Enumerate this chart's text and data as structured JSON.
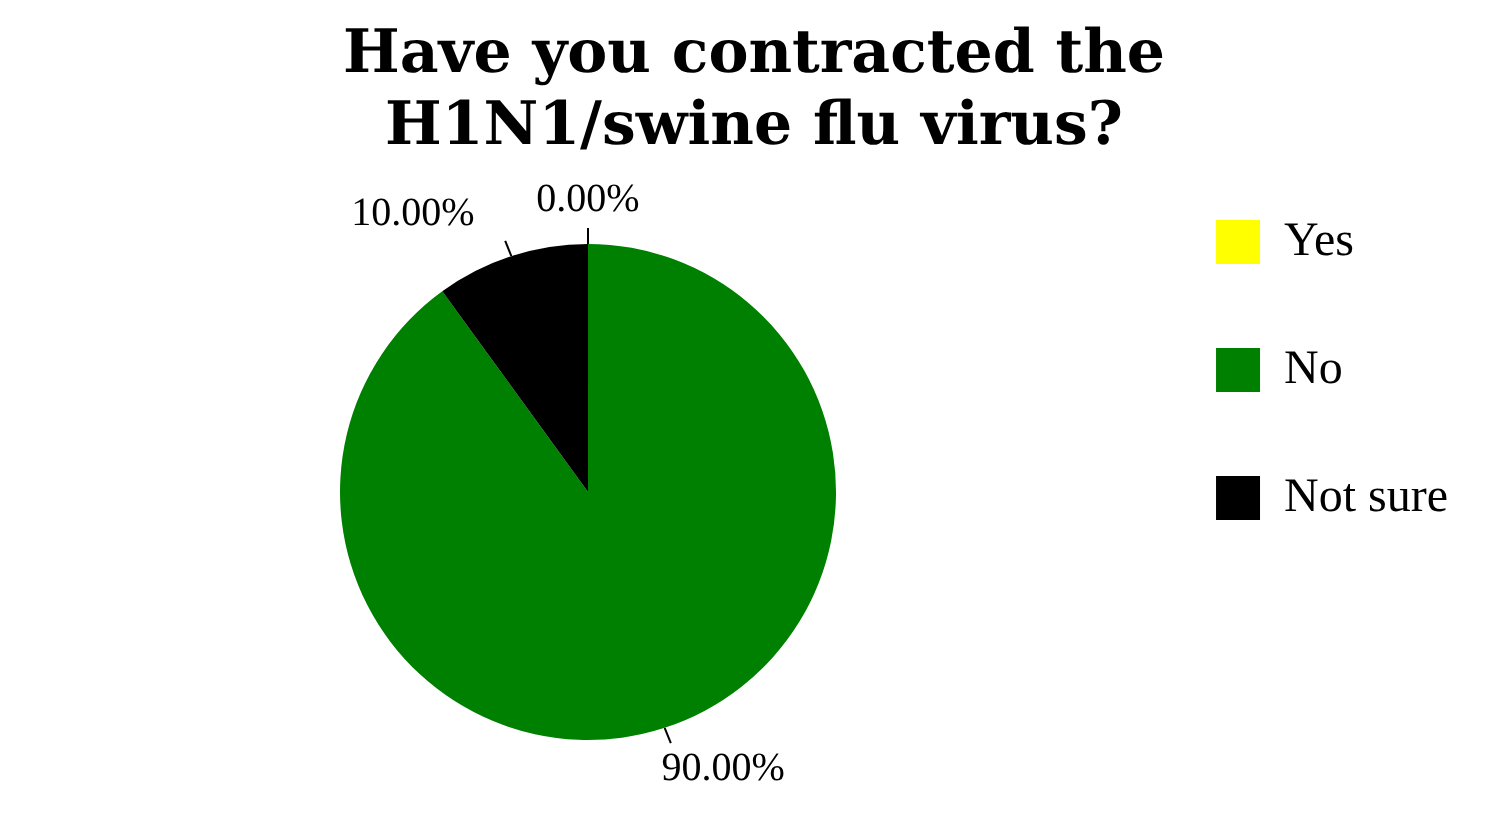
{
  "chart_data": {
    "type": "pie",
    "title": "Have you contracted the H1N1/swine flu virus?",
    "categories": [
      "Yes",
      "No",
      "Not sure"
    ],
    "values": [
      0,
      90,
      10
    ],
    "colors": [
      "#ffff00",
      "#008000",
      "#000000"
    ],
    "value_labels": [
      "0.00%",
      "90.00%",
      "10.00%"
    ],
    "legend": "right"
  }
}
